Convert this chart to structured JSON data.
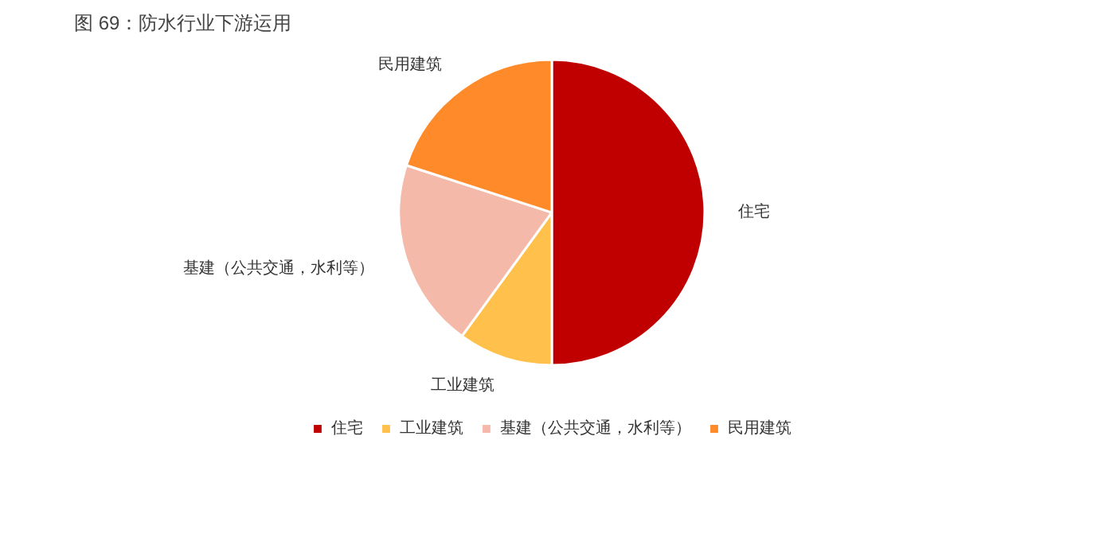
{
  "chart_data": {
    "type": "pie",
    "title": "图 69：防水行业下游运用",
    "categories": [
      "住宅",
      "工业建筑",
      "基建（公共交通，水利等）",
      "民用建筑"
    ],
    "values": [
      50,
      10,
      20,
      20
    ],
    "colors": [
      "#c00000",
      "#ffc04c",
      "#f4b9a8",
      "#ff8a2a"
    ],
    "legend": "bottom"
  }
}
